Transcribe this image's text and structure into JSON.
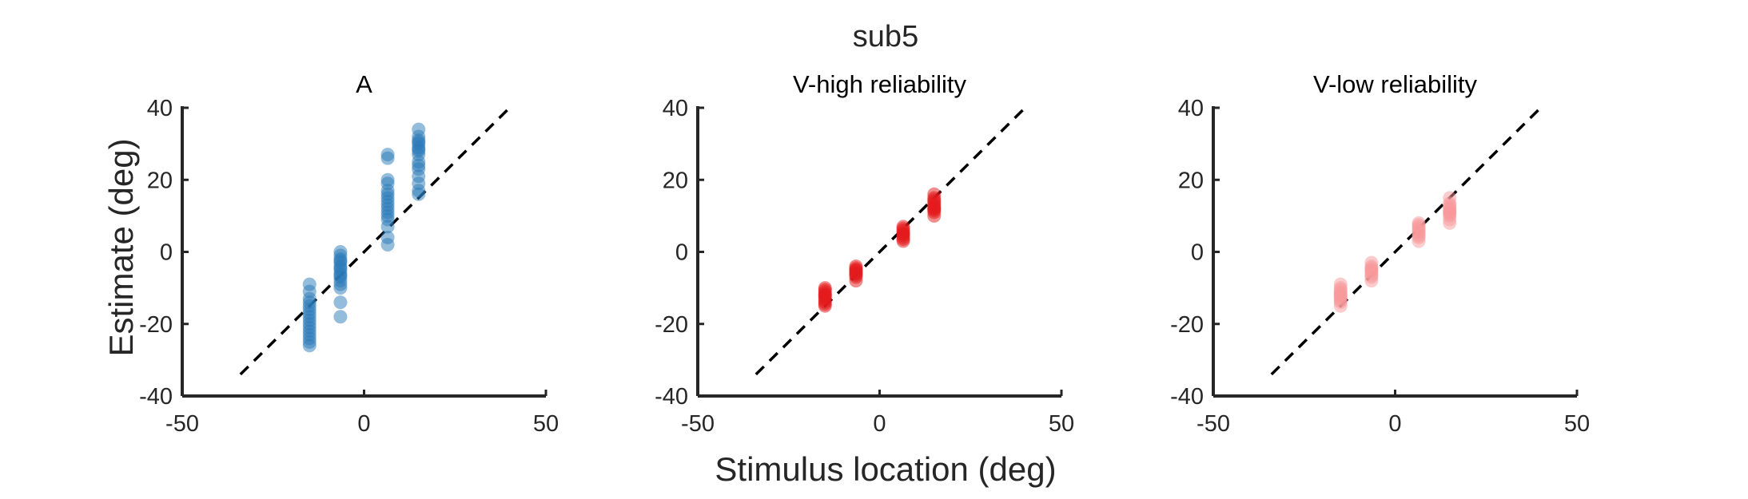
{
  "figure": {
    "title": "sub5",
    "xlabel": "Stimulus location (deg)",
    "ylabel": "Estimate (deg)"
  },
  "chart_data": [
    {
      "type": "scatter",
      "title": "A",
      "color": "#2a7ab8",
      "point_opacity": 0.5,
      "xlim": [
        -50,
        50
      ],
      "ylim": [
        -40,
        40
      ],
      "xticks": [
        "-50",
        "0",
        "50"
      ],
      "yticks": [
        "-40",
        "-20",
        "0",
        "20",
        "40"
      ],
      "identity_line": true,
      "points": [
        [
          -15,
          -9
        ],
        [
          -15,
          -11
        ],
        [
          -15,
          -13
        ],
        [
          -15,
          -14
        ],
        [
          -15,
          -15
        ],
        [
          -15,
          -16
        ],
        [
          -15,
          -17
        ],
        [
          -15,
          -19
        ],
        [
          -15,
          -20
        ],
        [
          -15,
          -21
        ],
        [
          -15,
          -22
        ],
        [
          -15,
          -23
        ],
        [
          -15,
          -24
        ],
        [
          -15,
          -25
        ],
        [
          -15,
          -26
        ],
        [
          -15,
          -18
        ],
        [
          -6.5,
          0
        ],
        [
          -6.5,
          -1
        ],
        [
          -6.5,
          -2
        ],
        [
          -6.5,
          -3
        ],
        [
          -6.5,
          -4
        ],
        [
          -6.5,
          -5
        ],
        [
          -6.5,
          -6
        ],
        [
          -6.5,
          -7
        ],
        [
          -6.5,
          -8
        ],
        [
          -6.5,
          -9
        ],
        [
          -6.5,
          -10
        ],
        [
          -6.5,
          -14
        ],
        [
          -6.5,
          -18
        ],
        [
          -6.5,
          -2.5
        ],
        [
          -6.5,
          -4.5
        ],
        [
          -6.5,
          -6.5
        ],
        [
          6.5,
          27
        ],
        [
          6.5,
          26
        ],
        [
          6.5,
          20
        ],
        [
          6.5,
          19
        ],
        [
          6.5,
          17
        ],
        [
          6.5,
          15
        ],
        [
          6.5,
          14
        ],
        [
          6.5,
          13
        ],
        [
          6.5,
          11
        ],
        [
          6.5,
          9
        ],
        [
          6.5,
          7
        ],
        [
          6.5,
          4
        ],
        [
          6.5,
          2
        ],
        [
          6.5,
          16
        ],
        [
          6.5,
          12
        ],
        [
          6.5,
          10
        ],
        [
          15,
          34
        ],
        [
          15,
          32
        ],
        [
          15,
          31
        ],
        [
          15,
          30
        ],
        [
          15,
          29
        ],
        [
          15,
          28
        ],
        [
          15,
          27
        ],
        [
          15,
          25
        ],
        [
          15,
          23
        ],
        [
          15,
          21
        ],
        [
          15,
          19
        ],
        [
          15,
          17
        ],
        [
          15,
          16
        ],
        [
          15,
          30.5
        ],
        [
          15,
          28.5
        ],
        [
          15,
          24
        ]
      ]
    },
    {
      "type": "scatter",
      "title": "V-high reliability",
      "color": "#e41a1c",
      "point_opacity": 0.5,
      "xlim": [
        -50,
        50
      ],
      "ylim": [
        -40,
        40
      ],
      "xticks": [
        "-50",
        "0",
        "50"
      ],
      "yticks": [
        "-40",
        "-20",
        "0",
        "20",
        "40"
      ],
      "identity_line": true,
      "points": [
        [
          -15,
          -10
        ],
        [
          -15,
          -11
        ],
        [
          -15,
          -12
        ],
        [
          -15,
          -13
        ],
        [
          -15,
          -14
        ],
        [
          -15,
          -15
        ],
        [
          -15,
          -11.5
        ],
        [
          -15,
          -12.5
        ],
        [
          -15,
          -13.5
        ],
        [
          -15,
          -10.5
        ],
        [
          -15,
          -14.5
        ],
        [
          -15,
          -12
        ],
        [
          -6.5,
          -4
        ],
        [
          -6.5,
          -5
        ],
        [
          -6.5,
          -6
        ],
        [
          -6.5,
          -7
        ],
        [
          -6.5,
          -5.5
        ],
        [
          -6.5,
          -6.5
        ],
        [
          -6.5,
          -4.5
        ],
        [
          -6.5,
          -8
        ],
        [
          -6.5,
          -5
        ],
        [
          -6.5,
          -6
        ],
        [
          6.5,
          3
        ],
        [
          6.5,
          4
        ],
        [
          6.5,
          5
        ],
        [
          6.5,
          6
        ],
        [
          6.5,
          7
        ],
        [
          6.5,
          4.5
        ],
        [
          6.5,
          5.5
        ],
        [
          6.5,
          6.5
        ],
        [
          6.5,
          3.5
        ],
        [
          6.5,
          5
        ],
        [
          15,
          16
        ],
        [
          15,
          15
        ],
        [
          15,
          14
        ],
        [
          15,
          13
        ],
        [
          15,
          12
        ],
        [
          15,
          11
        ],
        [
          15,
          10
        ],
        [
          15,
          13.5
        ],
        [
          15,
          12.5
        ],
        [
          15,
          11.5
        ],
        [
          15,
          14.5
        ],
        [
          15,
          12
        ]
      ]
    },
    {
      "type": "scatter",
      "title": "V-low reliability",
      "color": "#f89a9b",
      "point_opacity": 0.5,
      "xlim": [
        -50,
        50
      ],
      "ylim": [
        -40,
        40
      ],
      "xticks": [
        "-50",
        "0",
        "50"
      ],
      "yticks": [
        "-40",
        "-20",
        "0",
        "20",
        "40"
      ],
      "identity_line": true,
      "points": [
        [
          -15,
          -9
        ],
        [
          -15,
          -10
        ],
        [
          -15,
          -11
        ],
        [
          -15,
          -12
        ],
        [
          -15,
          -13
        ],
        [
          -15,
          -14
        ],
        [
          -15,
          -15
        ],
        [
          -15,
          -10.5
        ],
        [
          -15,
          -11.5
        ],
        [
          -15,
          -12.5
        ],
        [
          -15,
          -13.5
        ],
        [
          -15,
          -12
        ],
        [
          -6.5,
          -3
        ],
        [
          -6.5,
          -4
        ],
        [
          -6.5,
          -5
        ],
        [
          -6.5,
          -6
        ],
        [
          -6.5,
          -7
        ],
        [
          -6.5,
          -8
        ],
        [
          -6.5,
          -4.5
        ],
        [
          -6.5,
          -5.5
        ],
        [
          -6.5,
          -6.5
        ],
        [
          -6.5,
          -5
        ],
        [
          6.5,
          8
        ],
        [
          6.5,
          7
        ],
        [
          6.5,
          6
        ],
        [
          6.5,
          5
        ],
        [
          6.5,
          4
        ],
        [
          6.5,
          3
        ],
        [
          6.5,
          6.5
        ],
        [
          6.5,
          5.5
        ],
        [
          6.5,
          4.5
        ],
        [
          6.5,
          7.5
        ],
        [
          15,
          15
        ],
        [
          15,
          13
        ],
        [
          15,
          12
        ],
        [
          15,
          11
        ],
        [
          15,
          10
        ],
        [
          15,
          9
        ],
        [
          15,
          8
        ],
        [
          15,
          12.5
        ],
        [
          15,
          11.5
        ],
        [
          15,
          10.5
        ],
        [
          15,
          13.5
        ],
        [
          15,
          11
        ]
      ]
    }
  ]
}
